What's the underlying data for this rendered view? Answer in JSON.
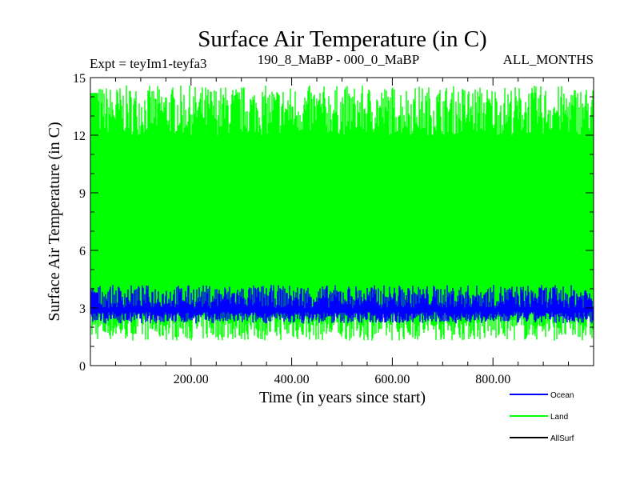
{
  "chart_data": {
    "type": "line",
    "title": "Surface Air Temperature (in C)",
    "experiment_label": "Expt = teyIm1-teyfa3",
    "period_label": "190_8_MaBP - 000_0_MaBP",
    "months_label": "ALL_MONTHS",
    "xlabel": "Time (in years since start)",
    "ylabel": "Surface Air Temperature (in C)",
    "xlim": [
      0,
      1000
    ],
    "ylim": [
      0,
      15
    ],
    "x_ticks": [
      200,
      400,
      600,
      800
    ],
    "x_tick_labels": [
      "200.00",
      "400.00",
      "600.00",
      "800.00"
    ],
    "y_ticks": [
      0,
      3,
      6,
      9,
      12,
      15
    ],
    "y_tick_labels": [
      "0",
      "3",
      "6",
      "9",
      "12",
      "15"
    ],
    "legend_position": "bottom-right outside",
    "series": [
      {
        "name": "Land",
        "color": "#00ff00",
        "style": "annual-cycle envelope",
        "upper_range": [
          12.0,
          14.6
        ],
        "lower_range": [
          1.3,
          2.8
        ]
      },
      {
        "name": "Ocean",
        "color": "#0000ff",
        "style": "annual-cycle envelope",
        "upper_range": [
          3.0,
          4.2
        ],
        "lower_range": [
          2.2,
          2.8
        ]
      },
      {
        "name": "AllSurf",
        "color": "#000000",
        "style": "line",
        "values": []
      }
    ]
  }
}
